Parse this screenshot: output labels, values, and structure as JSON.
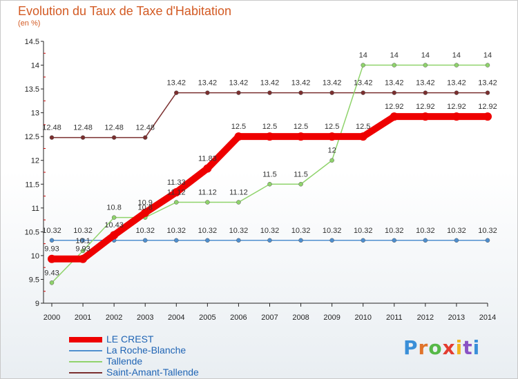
{
  "header": {
    "title": "Evolution du Taux de Taxe d'Habitation",
    "subtitle": "(en %)"
  },
  "logo": {
    "text": "Proxiti"
  },
  "chart_data": {
    "type": "line",
    "title": "Evolution du Taux de Taxe d'Habitation",
    "subtitle": "(en %)",
    "xlabel": "",
    "ylabel": "",
    "categories": [
      "2000",
      "2001",
      "2002",
      "2003",
      "2004",
      "2005",
      "2006",
      "2007",
      "2008",
      "2009",
      "2010",
      "2011",
      "2012",
      "2013",
      "2014"
    ],
    "yticks": [
      "9",
      "9.5",
      "10",
      "10.5",
      "11",
      "11.5",
      "12",
      "12.5",
      "13",
      "13.5",
      "14",
      "14.5"
    ],
    "ylim": [
      9,
      14.5
    ],
    "grid": false,
    "legend_position": "bottom-left",
    "series": [
      {
        "name": "LE CREST",
        "color": "#ee0000",
        "values": [
          9.93,
          9.93,
          10.43,
          10.9,
          11.33,
          11.83,
          12.5,
          12.5,
          12.5,
          12.5,
          12.5,
          12.92,
          12.92,
          12.92,
          12.92
        ],
        "labels": [
          "9.93",
          "9.93",
          "10.43",
          "10.9",
          "11.33",
          "11.83",
          "12.5",
          "12.5",
          "12.5",
          "12.5",
          "12.5",
          "12.92",
          "12.92",
          "12.92",
          "12.92"
        ]
      },
      {
        "name": "La Roche-Blanche",
        "color": "#4f8fcf",
        "values": [
          10.32,
          10.32,
          10.32,
          10.32,
          10.32,
          10.32,
          10.32,
          10.32,
          10.32,
          10.32,
          10.32,
          10.32,
          10.32,
          10.32,
          10.32
        ],
        "labels": [
          "10.32",
          "10.32",
          "",
          "10.32",
          "10.32",
          "10.32",
          "10.32",
          "10.32",
          "10.32",
          "10.32",
          "10.32",
          "10.32",
          "10.32",
          "10.32",
          "10.32"
        ]
      },
      {
        "name": "Tallende",
        "color": "#8fd36b",
        "values": [
          9.43,
          10.1,
          10.8,
          10.8,
          11.12,
          11.12,
          11.12,
          11.5,
          11.5,
          12,
          14,
          14,
          14,
          14,
          14
        ],
        "labels": [
          "9.43",
          "10.1",
          "10.8",
          "10.8",
          "11.12",
          "11.12",
          "11.12",
          "11.5",
          "11.5",
          "12",
          "14",
          "14",
          "14",
          "14",
          "14"
        ]
      },
      {
        "name": "Saint-Amant-Tallende",
        "color": "#7a2e2e",
        "values": [
          12.48,
          12.48,
          12.48,
          12.48,
          13.42,
          13.42,
          13.42,
          13.42,
          13.42,
          13.42,
          13.42,
          13.42,
          13.42,
          13.42,
          13.42
        ],
        "labels": [
          "12.48",
          "12.48",
          "12.48",
          "12.48",
          "13.42",
          "13.42",
          "13.42",
          "13.42",
          "13.42",
          "13.42",
          "13.42",
          "13.42",
          "13.42",
          "13.42",
          "13.42"
        ]
      }
    ]
  }
}
